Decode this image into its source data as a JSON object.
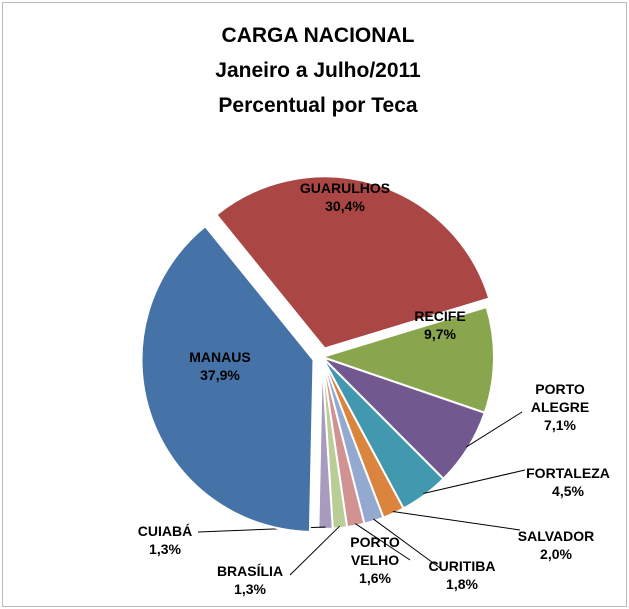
{
  "chart_data": {
    "type": "pie",
    "title": [
      "CARGA NACIONAL",
      "Janeiro a Julho/2011",
      "Percentual por Teca"
    ],
    "categories": [
      "GUARULHOS",
      "RECIFE",
      "PORTO ALEGRE",
      "FORTALEZA",
      "SALVADOR",
      "CURITIBA",
      "PORTO VELHO",
      "BRASÍLIA",
      "CUIABÁ",
      "MANAUS"
    ],
    "values": [
      30.4,
      9.7,
      7.1,
      4.5,
      2.0,
      1.8,
      1.6,
      1.3,
      1.3,
      37.9
    ],
    "value_labels": [
      "30,4%",
      "9,7%",
      "7,1%",
      "4,5%",
      "2,0%",
      "1,8%",
      "1,6%",
      "1,3%",
      "1,3%",
      "37,9%"
    ],
    "colors": [
      "#AA4643",
      "#89A54E",
      "#71588F",
      "#4198AF",
      "#DB843D",
      "#93A9CF",
      "#D19392",
      "#B9CD96",
      "#A99BBD",
      "#4572A7"
    ]
  }
}
